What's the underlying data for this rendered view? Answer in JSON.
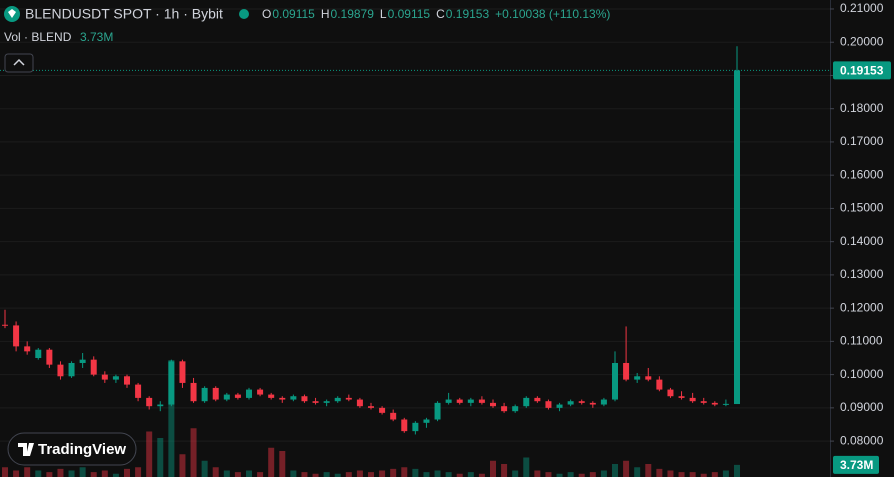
{
  "chart_data": {
    "type": "candlestick",
    "title": "BLENDUSDT SPOT · 1h · Bybit",
    "ohlc_legend": [
      {
        "key": "O",
        "value": "0.09115"
      },
      {
        "key": "H",
        "value": "0.19879"
      },
      {
        "key": "L",
        "value": "0.09115"
      },
      {
        "key": "C",
        "value": "0.19153"
      }
    ],
    "change": "+0.10038 (+110.13%)",
    "volume_legend": {
      "label": "Vol · BLEND",
      "value": "3.73M"
    },
    "watermark": "TradingView",
    "up_color": "#089981",
    "down_color": "#f23645",
    "ylim": [
      0.0692,
      0.2127
    ],
    "yticks": [
      {
        "value": 0.08,
        "label": "0.08000"
      },
      {
        "value": 0.09,
        "label": "0.09000"
      },
      {
        "value": 0.1,
        "label": "0.10000"
      },
      {
        "value": 0.11,
        "label": "0.11000"
      },
      {
        "value": 0.12,
        "label": "0.12000"
      },
      {
        "value": 0.13,
        "label": "0.13000"
      },
      {
        "value": 0.14,
        "label": "0.14000"
      },
      {
        "value": 0.15,
        "label": "0.15000"
      },
      {
        "value": 0.16,
        "label": "0.16000"
      },
      {
        "value": 0.17,
        "label": "0.17000"
      },
      {
        "value": 0.18,
        "label": "0.18000"
      },
      {
        "value": 0.19,
        "label": "0.19000"
      },
      {
        "value": 0.2,
        "label": "0.20000"
      },
      {
        "value": 0.21,
        "label": "0.21000"
      }
    ],
    "grid": true,
    "candles": [
      [
        0.115,
        0.1195,
        0.114,
        0.1148
      ],
      [
        0.1148,
        0.116,
        0.107,
        0.1085
      ],
      [
        0.1085,
        0.11,
        0.106,
        0.107
      ],
      [
        0.105,
        0.108,
        0.1045,
        0.1075
      ],
      [
        0.1075,
        0.108,
        0.102,
        0.103
      ],
      [
        0.103,
        0.104,
        0.0985,
        0.0995
      ],
      [
        0.0995,
        0.104,
        0.099,
        0.1035
      ],
      [
        0.1035,
        0.1065,
        0.102,
        0.1045
      ],
      [
        0.1045,
        0.1055,
        0.0995,
        0.1
      ],
      [
        0.1,
        0.101,
        0.0975,
        0.0985
      ],
      [
        0.0985,
        0.1,
        0.0975,
        0.0995
      ],
      [
        0.0995,
        0.1,
        0.096,
        0.097
      ],
      [
        0.097,
        0.0975,
        0.092,
        0.093
      ],
      [
        0.093,
        0.0935,
        0.0895,
        0.0905
      ],
      [
        0.0905,
        0.092,
        0.089,
        0.091
      ],
      [
        0.091,
        0.1045,
        0.0905,
        0.104
      ],
      [
        0.104,
        0.1045,
        0.096,
        0.0975
      ],
      [
        0.0975,
        0.099,
        0.0915,
        0.092
      ],
      [
        0.092,
        0.0965,
        0.0915,
        0.096
      ],
      [
        0.096,
        0.0965,
        0.092,
        0.0925
      ],
      [
        0.0925,
        0.0945,
        0.092,
        0.094
      ],
      [
        0.094,
        0.0945,
        0.0925,
        0.093
      ],
      [
        0.093,
        0.096,
        0.0925,
        0.0955
      ],
      [
        0.0955,
        0.096,
        0.0935,
        0.094
      ],
      [
        0.094,
        0.0945,
        0.0925,
        0.093
      ],
      [
        0.093,
        0.0935,
        0.0915,
        0.0925
      ],
      [
        0.0925,
        0.094,
        0.092,
        0.0935
      ],
      [
        0.0935,
        0.094,
        0.0915,
        0.092
      ],
      [
        0.092,
        0.093,
        0.091,
        0.0915
      ],
      [
        0.0915,
        0.0925,
        0.0905,
        0.092
      ],
      [
        0.092,
        0.0935,
        0.0915,
        0.093
      ],
      [
        0.093,
        0.094,
        0.092,
        0.0925
      ],
      [
        0.0925,
        0.093,
        0.09,
        0.0905
      ],
      [
        0.0905,
        0.0915,
        0.0895,
        0.09
      ],
      [
        0.09,
        0.0905,
        0.088,
        0.0885
      ],
      [
        0.0885,
        0.0895,
        0.086,
        0.0865
      ],
      [
        0.0865,
        0.087,
        0.0825,
        0.083
      ],
      [
        0.083,
        0.086,
        0.082,
        0.0855
      ],
      [
        0.0855,
        0.087,
        0.084,
        0.0865
      ],
      [
        0.0865,
        0.092,
        0.086,
        0.0915
      ],
      [
        0.0915,
        0.0945,
        0.091,
        0.0925
      ],
      [
        0.0925,
        0.093,
        0.091,
        0.0915
      ],
      [
        0.0915,
        0.093,
        0.0905,
        0.0925
      ],
      [
        0.0925,
        0.0935,
        0.091,
        0.0915
      ],
      [
        0.0915,
        0.0925,
        0.09,
        0.0905
      ],
      [
        0.0905,
        0.0915,
        0.0885,
        0.089
      ],
      [
        0.089,
        0.091,
        0.0885,
        0.0905
      ],
      [
        0.0905,
        0.0935,
        0.09,
        0.093
      ],
      [
        0.093,
        0.0935,
        0.0915,
        0.092
      ],
      [
        0.092,
        0.0925,
        0.0895,
        0.09
      ],
      [
        0.09,
        0.0915,
        0.089,
        0.091
      ],
      [
        0.091,
        0.0925,
        0.0905,
        0.092
      ],
      [
        0.092,
        0.0925,
        0.091,
        0.0915
      ],
      [
        0.0915,
        0.092,
        0.09,
        0.091
      ],
      [
        0.091,
        0.093,
        0.0905,
        0.0925
      ],
      [
        0.0925,
        0.107,
        0.092,
        0.1035
      ],
      [
        0.1035,
        0.1145,
        0.098,
        0.0985
      ],
      [
        0.0985,
        0.1005,
        0.0975,
        0.0995
      ],
      [
        0.0995,
        0.102,
        0.098,
        0.0985
      ],
      [
        0.0985,
        0.0995,
        0.095,
        0.0955
      ],
      [
        0.0955,
        0.096,
        0.093,
        0.0935
      ],
      [
        0.0935,
        0.095,
        0.0925,
        0.093
      ],
      [
        0.093,
        0.0945,
        0.0915,
        0.092
      ],
      [
        0.092,
        0.093,
        0.091,
        0.0915
      ],
      [
        0.0915,
        0.092,
        0.0905,
        0.091
      ],
      [
        0.091,
        0.0925,
        0.0905,
        0.0912
      ],
      [
        0.09115,
        0.19879,
        0.09115,
        0.19153
      ]
    ],
    "vol_ylim": [
      0,
      40000000
    ],
    "volumes": [
      3000000,
      2000000,
      3000000,
      2000000,
      1500000,
      2500000,
      2000000,
      3000000,
      1500000,
      2000000,
      1000000,
      2500000,
      3000000,
      14000000,
      12000000,
      36000000,
      7000000,
      15000000,
      5000000,
      3000000,
      2000000,
      1500000,
      2000000,
      1500000,
      9000000,
      8000000,
      2000000,
      1500000,
      1000000,
      1500000,
      1000000,
      1500000,
      2000000,
      1500000,
      2000000,
      2500000,
      3000000,
      2500000,
      1500000,
      2000000,
      1500000,
      1000000,
      1500000,
      1000000,
      5000000,
      4000000,
      2000000,
      6000000,
      2000000,
      1500000,
      1000000,
      1500000,
      1000000,
      1500000,
      2000000,
      4000000,
      5000000,
      3000000,
      4000000,
      2500000,
      2000000,
      1500000,
      1500000,
      1000000,
      1500000,
      2000000,
      3730000
    ]
  }
}
